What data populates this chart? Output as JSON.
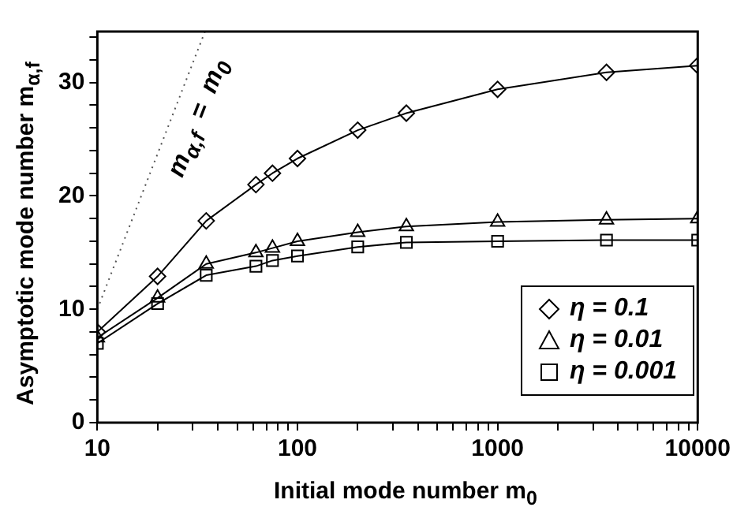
{
  "chart_data": {
    "type": "line",
    "xlabel": "Initial mode number m$_{0}$",
    "ylabel": "Asymptotic mode number m$_{α,f}$",
    "log": "x",
    "xlim": [
      10,
      10000
    ],
    "xticks": [
      10,
      {
        "value": 20,
        "label": null
      },
      {
        "value": 30,
        "label": null
      },
      {
        "value": 40,
        "label": null
      },
      {
        "value": 50,
        "label": null
      },
      {
        "value": 60,
        "label": null
      },
      {
        "value": 70,
        "label": null
      },
      {
        "value": 80,
        "label": null
      },
      {
        "value": 90,
        "label": null
      },
      100,
      {
        "value": 200,
        "label": null
      },
      {
        "value": 300,
        "label": null
      },
      {
        "value": 400,
        "label": null
      },
      {
        "value": 500,
        "label": null
      },
      {
        "value": 600,
        "label": null
      },
      {
        "value": 700,
        "label": null
      },
      {
        "value": 800,
        "label": null
      },
      {
        "value": 900,
        "label": null
      },
      1000,
      {
        "value": 2000,
        "label": null
      },
      {
        "value": 3000,
        "label": null
      },
      {
        "value": 4000,
        "label": null
      },
      {
        "value": 5000,
        "label": null
      },
      {
        "value": 6000,
        "label": null
      },
      {
        "value": 7000,
        "label": null
      },
      {
        "value": 8000,
        "label": null
      },
      {
        "value": 9000,
        "label": null
      },
      10000
    ],
    "ylim": [
      0,
      34.5
    ],
    "yticks": [
      0,
      {
        "value": 2,
        "label": null
      },
      {
        "value": 4,
        "label": null
      },
      {
        "value": 6,
        "label": null
      },
      {
        "value": 8,
        "label": null
      },
      10,
      {
        "value": 12,
        "label": null
      },
      {
        "value": 14,
        "label": null
      },
      {
        "value": 16,
        "label": null
      },
      {
        "value": 18,
        "label": null
      },
      20,
      {
        "value": 22,
        "label": null
      },
      {
        "value": 24,
        "label": null
      },
      {
        "value": 26,
        "label": null
      },
      {
        "value": 28,
        "label": null
      },
      30,
      {
        "value": 32,
        "label": null
      },
      {
        "value": 34,
        "label": null
      }
    ],
    "grid": false,
    "legend": "bottom right",
    "x": [
      10,
      20,
      35,
      62,
      75,
      100,
      200,
      350,
      1000,
      3500,
      10000
    ],
    "series": [
      {
        "name": "η = 0.1",
        "color": "#000000",
        "marker": "diamond",
        "line_style": "solid",
        "values": [
          8,
          12.9,
          17.8,
          21,
          22,
          23.3,
          25.8,
          27.3,
          29.4,
          30.9,
          31.5
        ]
      },
      {
        "name": "η = 0.01",
        "color": "#000000",
        "marker": "triangle",
        "line_style": "solid",
        "values": [
          7.5,
          11,
          14,
          15,
          15.4,
          16,
          16.8,
          17.3,
          17.7,
          17.9,
          18
        ]
      },
      {
        "name": "η = 0.001",
        "color": "#000000",
        "marker": "square",
        "line_style": "solid",
        "values": [
          7,
          10.5,
          13,
          13.8,
          14.3,
          14.7,
          15.5,
          15.9,
          16,
          16.1,
          16.1
        ]
      },
      {
        "color": "#555555",
        "marker": "none",
        "line_style": "dotted",
        "x": [
          10,
          34.5
        ],
        "values": [
          10,
          34.5
        ]
      }
    ],
    "annotations": [
      "m$_{α,f}$ = m$_{0}$"
    ]
  }
}
